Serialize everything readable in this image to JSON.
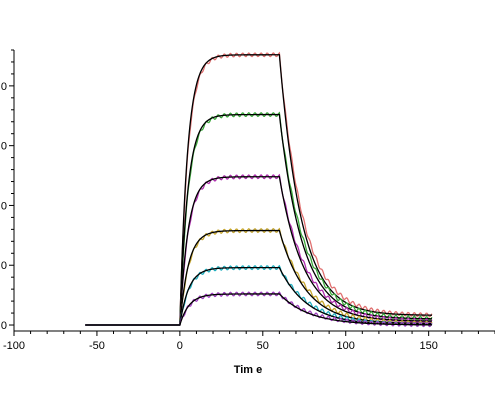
{
  "chart_data": {
    "type": "line",
    "title": "",
    "xlabel": "Tim e",
    "ylabel": "",
    "xlim": [
      -100,
      190
    ],
    "ylim": [
      -0.5,
      23
    ],
    "x_ticks": [
      -100,
      -50,
      0,
      50,
      100,
      150
    ],
    "y_ticks": [
      0,
      5,
      10,
      15,
      20
    ],
    "y_tick_labels": [
      "0",
      "0",
      "0",
      "0",
      "0"
    ],
    "grid": false,
    "legend": "none",
    "fit_color": "#000000",
    "association_start": 0,
    "dissociation_start": 60,
    "series": [
      {
        "color": "#e07070",
        "plateau": 22.6,
        "end": 0.8
      },
      {
        "color": "#3caa3c",
        "plateau": 17.6,
        "end": 0.5
      },
      {
        "color": "#b030b0",
        "plateau": 12.4,
        "end": 0.3
      },
      {
        "color": "#c8a830",
        "plateau": 7.9,
        "end": 0.1
      },
      {
        "color": "#20b0c0",
        "plateau": 4.8,
        "end": 0.0
      },
      {
        "color": "#a040c0",
        "plateau": 2.6,
        "end": 0.0
      }
    ]
  }
}
